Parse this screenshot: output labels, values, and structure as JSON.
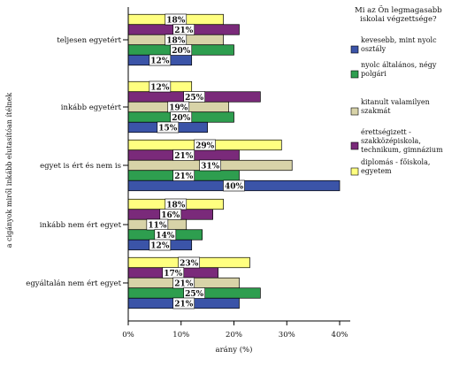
{
  "chart_data": {
    "type": "bar",
    "orientation": "horizontal",
    "xlabel": "arány (%)",
    "ylabel": "a cigányok miről inkább elutasítóan ítélnek",
    "xlim": [
      0,
      40
    ],
    "xticks": [
      "0%",
      "10%",
      "20%",
      "30%",
      "40%"
    ],
    "grid": false,
    "legend_title": "Mi az Ön legmagasabb iskolai végzettsége?",
    "legend_position": "right",
    "categories": [
      "teljesen egyetért",
      "inkább egyetért",
      "egyet is ért és nem is",
      "inkább nem ért egyet",
      "egyáltalán nem ért egyet"
    ],
    "series": [
      {
        "name": "kevesebb, mint nyolc osztály",
        "color": "#3b54a8",
        "values": [
          12,
          15,
          40,
          12,
          21
        ],
        "labels": [
          "12%",
          "15%",
          "40%",
          "12%",
          "21%"
        ]
      },
      {
        "name": "nyolc általános, négy polgári",
        "color": "#2e9e4f",
        "values": [
          20,
          20,
          21,
          14,
          25
        ],
        "labels": [
          "20%",
          "20%",
          "21%",
          "14%",
          "25%"
        ]
      },
      {
        "name": "kitanult valamilyen szakmát",
        "color": "#d8d3a8",
        "values": [
          18,
          19,
          31,
          11,
          21
        ],
        "labels": [
          "18%",
          "19%",
          "31%",
          "11%",
          "21%"
        ]
      },
      {
        "name": "érettségizett - szakközépiskola, technikum, gimnázium",
        "color": "#7a2a7a",
        "values": [
          21,
          25,
          21,
          16,
          17
        ],
        "labels": [
          "21%",
          "25%",
          "21%",
          "16%",
          "17%"
        ]
      },
      {
        "name": "diplomás - főiskola, egyetem",
        "color": "#ffff80",
        "values": [
          18,
          12,
          29,
          18,
          23
        ],
        "labels": [
          "18%",
          "12%",
          "29%",
          "18%",
          "23%"
        ]
      }
    ]
  }
}
